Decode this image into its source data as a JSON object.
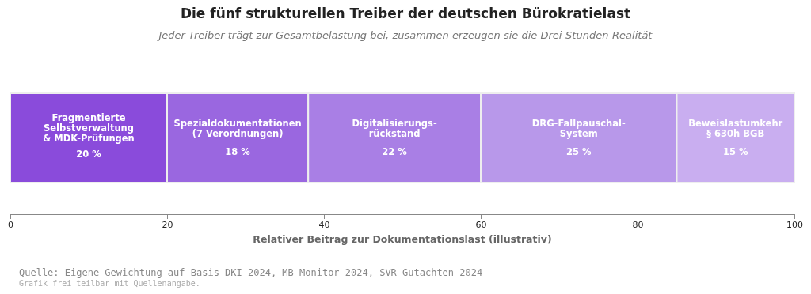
{
  "chart_data": {
    "type": "bar",
    "orientation": "horizontal",
    "stacked": true,
    "title": "Die fünf strukturellen Treiber der deutschen Bürokratielast",
    "subtitle": "Jeder Treiber trägt zur Gesamtbelastung bei, zusammen erzeugen sie die Drei-Stunden-Realität",
    "xlabel": "Relativer Beitrag zur Dokumentationslast (illustrativ)",
    "categories": [
      null
    ],
    "series": [
      {
        "name": "Fragmentierte\nSelbstverwaltung\n& MDK-Prüfungen",
        "color": "#8a4bdb",
        "values": [
          20
        ],
        "value_labels": [
          "20 %"
        ]
      },
      {
        "name": "Spezialdokumentationen\n(7 Verordnungen)",
        "color": "#9a67e0",
        "values": [
          18
        ],
        "value_labels": [
          "18 %"
        ]
      },
      {
        "name": "Digitalisierungs-\nrückstand",
        "color": "#a97fe5",
        "values": [
          22
        ],
        "value_labels": [
          "22 %"
        ]
      },
      {
        "name": "DRG-Fallpauschal-\nSystem",
        "color": "#b898ea",
        "values": [
          25
        ],
        "value_labels": [
          "25 %"
        ]
      },
      {
        "name": "Beweislastumkehr\n§ 630h BGB",
        "color": "#c9aef0",
        "values": [
          15
        ],
        "value_labels": [
          "15 %"
        ]
      }
    ],
    "xlim": [
      0,
      100
    ],
    "xticks": [
      0,
      20,
      40,
      60,
      80,
      100
    ],
    "grid": false,
    "annotations": [
      "Quelle: Eigene Gewichtung auf Basis DKI 2024, MB-Monitor 2024, SVR-Gutachten 2024",
      "Grafik frei teilbar mit Quellenangabe."
    ]
  }
}
